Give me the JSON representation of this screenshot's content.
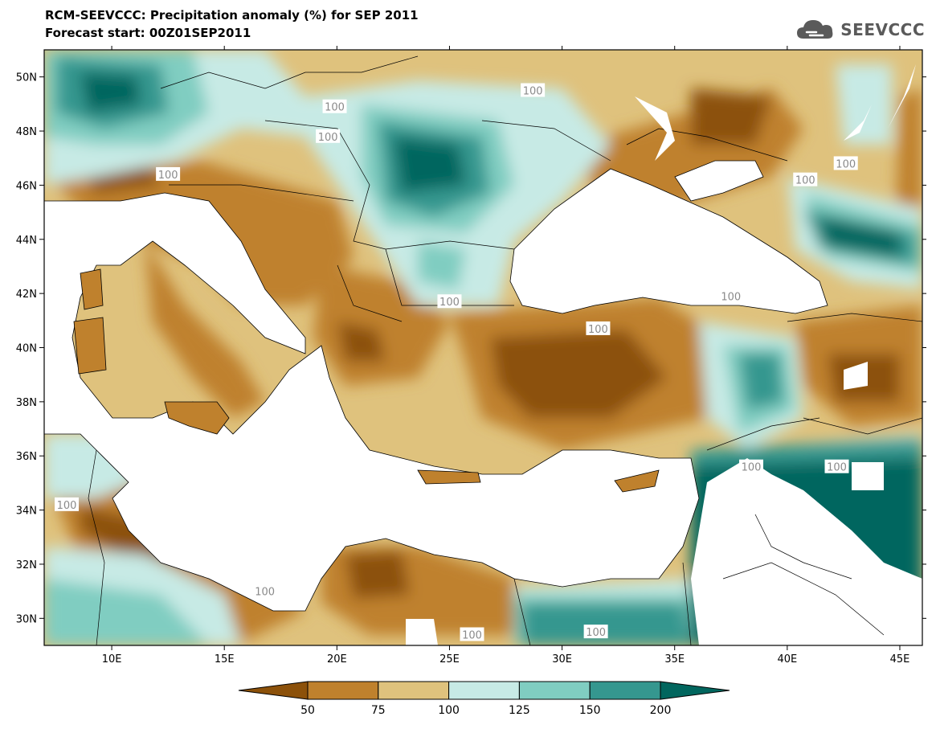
{
  "header": {
    "title": "RCM-SEEVCCC: Precipitation anomaly (%) for SEP 2011",
    "subtitle": "Forecast start: 00Z01SEP2011"
  },
  "logo": {
    "text": "SEEVCCC",
    "icon": "cloud-icon",
    "color": "#5a5a5a"
  },
  "map": {
    "lon_range": [
      7,
      46
    ],
    "lat_range": [
      29,
      51
    ],
    "lat_ticks": [
      {
        "v": 30,
        "label": "30N"
      },
      {
        "v": 32,
        "label": "32N"
      },
      {
        "v": 34,
        "label": "34N"
      },
      {
        "v": 36,
        "label": "36N"
      },
      {
        "v": 38,
        "label": "38N"
      },
      {
        "v": 40,
        "label": "40N"
      },
      {
        "v": 42,
        "label": "42N"
      },
      {
        "v": 44,
        "label": "44N"
      },
      {
        "v": 46,
        "label": "46N"
      },
      {
        "v": 48,
        "label": "48N"
      },
      {
        "v": 50,
        "label": "50N"
      }
    ],
    "lon_ticks": [
      {
        "v": 10,
        "label": "10E"
      },
      {
        "v": 15,
        "label": "15E"
      },
      {
        "v": 20,
        "label": "20E"
      },
      {
        "v": 25,
        "label": "25E"
      },
      {
        "v": 30,
        "label": "30E"
      },
      {
        "v": 35,
        "label": "35E"
      },
      {
        "v": 40,
        "label": "40E"
      },
      {
        "v": 45,
        "label": "45E"
      }
    ],
    "contour_labels": [
      {
        "text": "100",
        "lon": 28.7,
        "lat": 49.5
      },
      {
        "text": "100",
        "lon": 19.9,
        "lat": 48.9
      },
      {
        "text": "100",
        "lon": 19.6,
        "lat": 47.8
      },
      {
        "text": "100",
        "lon": 12.5,
        "lat": 46.4
      },
      {
        "text": "100",
        "lon": 42.6,
        "lat": 46.8
      },
      {
        "text": "100",
        "lon": 40.8,
        "lat": 46.2
      },
      {
        "text": "100",
        "lon": 25.0,
        "lat": 41.7
      },
      {
        "text": "100",
        "lon": 37.5,
        "lat": 41.9
      },
      {
        "text": "100",
        "lon": 31.6,
        "lat": 40.7
      },
      {
        "text": "100",
        "lon": 8.0,
        "lat": 34.2
      },
      {
        "text": "100",
        "lon": 42.2,
        "lat": 35.6
      },
      {
        "text": "100",
        "lon": 38.4,
        "lat": 35.6
      },
      {
        "text": "100",
        "lon": 16.8,
        "lat": 31.0
      },
      {
        "text": "100",
        "lon": 31.5,
        "lat": 29.5
      },
      {
        "text": "100",
        "lon": 26.0,
        "lat": 29.4
      }
    ]
  },
  "colorbar": {
    "labels": [
      "50",
      "75",
      "100",
      "125",
      "150",
      "200"
    ],
    "colors": [
      "#8c510a",
      "#bf812d",
      "#dfc27d",
      "#c7eae5",
      "#80cdc1",
      "#35978f",
      "#01665e"
    ]
  }
}
